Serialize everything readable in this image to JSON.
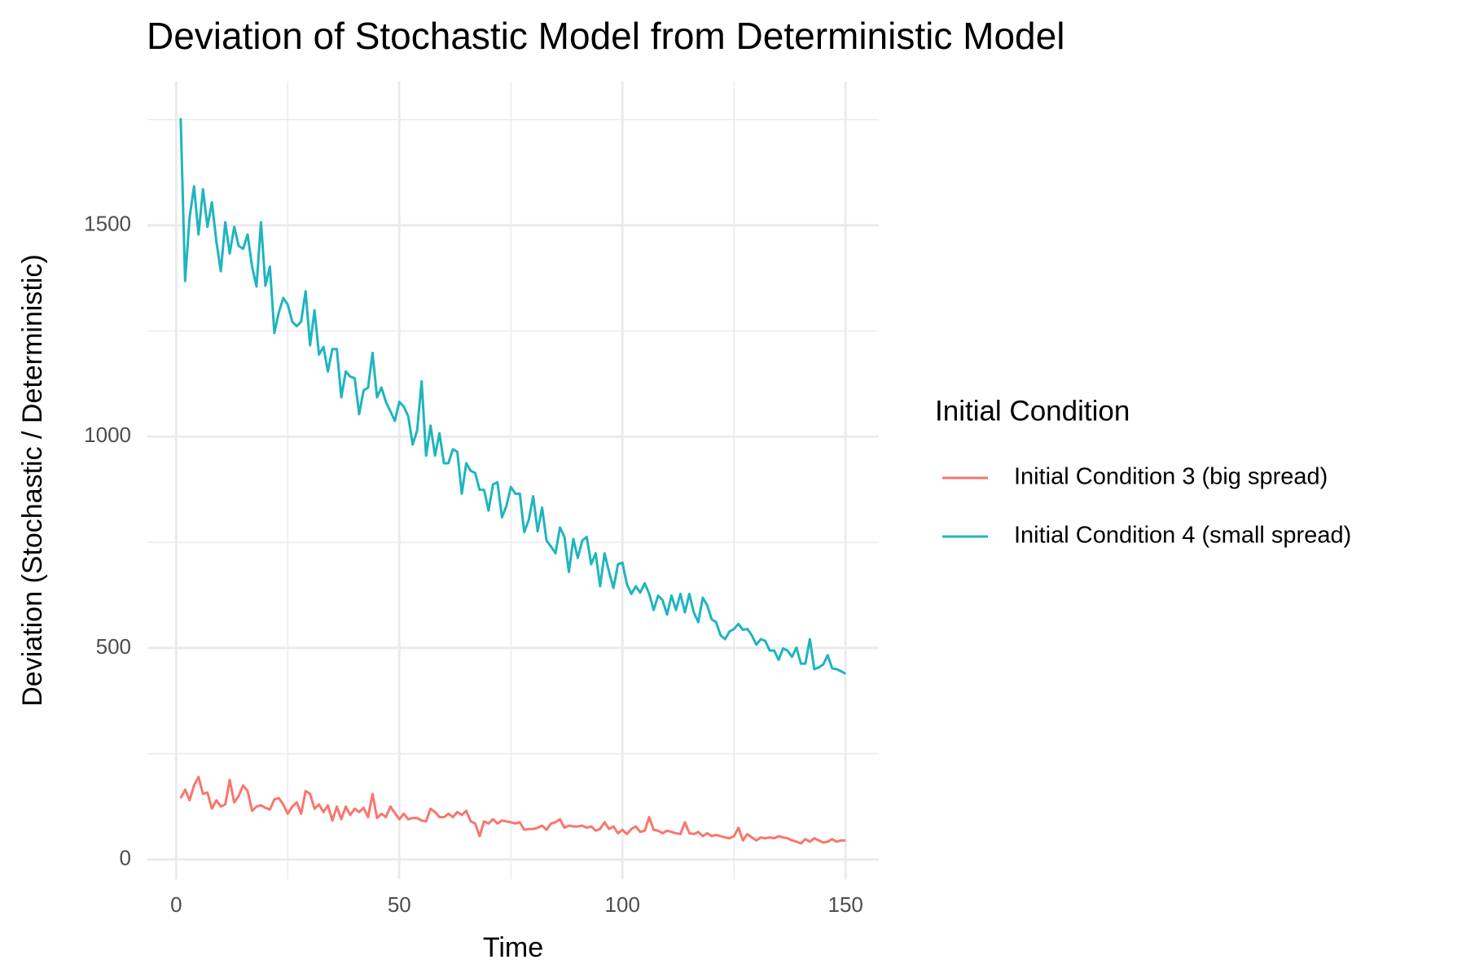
{
  "chart_data": {
    "type": "line",
    "title": "Deviation of Stochastic Model from Deterministic Model",
    "x_label": "Time",
    "y_label": "Deviation (Stochastic / Deterministic)",
    "legend_title": "Initial Condition",
    "legend_position": "right",
    "grid": true,
    "xlim": [
      -6.45,
      157.45
    ],
    "ylim": [
      -47,
      1840
    ],
    "xticks": [
      0,
      50,
      100,
      150
    ],
    "yticks": [
      0,
      500,
      1000,
      1500
    ],
    "x_minor_grid": [
      25,
      75,
      125
    ],
    "y_minor_grid": [
      250,
      750,
      1250,
      1750
    ],
    "x": [
      1,
      2,
      3,
      4,
      5,
      6,
      7,
      8,
      9,
      10,
      11,
      12,
      13,
      14,
      15,
      16,
      17,
      18,
      19,
      20,
      21,
      22,
      23,
      24,
      25,
      26,
      27,
      28,
      29,
      30,
      31,
      32,
      33,
      34,
      35,
      36,
      37,
      38,
      39,
      40,
      41,
      42,
      43,
      44,
      45,
      46,
      47,
      48,
      49,
      50,
      51,
      52,
      53,
      54,
      55,
      56,
      57,
      58,
      59,
      60,
      61,
      62,
      63,
      64,
      65,
      66,
      67,
      68,
      69,
      70,
      71,
      72,
      73,
      74,
      75,
      76,
      77,
      78,
      79,
      80,
      81,
      82,
      83,
      84,
      85,
      86,
      87,
      88,
      89,
      90,
      91,
      92,
      93,
      94,
      95,
      96,
      97,
      98,
      99,
      100,
      101,
      102,
      103,
      104,
      105,
      106,
      107,
      108,
      109,
      110,
      111,
      112,
      113,
      114,
      115,
      116,
      117,
      118,
      119,
      120,
      121,
      122,
      123,
      124,
      125,
      126,
      127,
      128,
      129,
      130,
      131,
      132,
      133,
      134,
      135,
      136,
      137,
      138,
      139,
      140,
      141,
      142,
      143,
      144,
      145,
      146,
      147,
      148,
      149,
      150
    ],
    "series": [
      {
        "name": "Initial Condition 3 (big spread)",
        "color": "#F8766D",
        "values": [
          145,
          165,
          140,
          175,
          195,
          155,
          158,
          120,
          140,
          125,
          130,
          188,
          135,
          150,
          175,
          162,
          115,
          125,
          128,
          122,
          118,
          142,
          145,
          130,
          108,
          125,
          135,
          108,
          162,
          155,
          120,
          130,
          112,
          128,
          92,
          125,
          95,
          125,
          105,
          120,
          112,
          122,
          100,
          155,
          98,
          108,
          100,
          125,
          110,
          95,
          108,
          95,
          98,
          98,
          92,
          90,
          120,
          112,
          100,
          100,
          108,
          100,
          112,
          105,
          115,
          90,
          85,
          55,
          90,
          85,
          95,
          85,
          92,
          90,
          88,
          85,
          88,
          70,
          72,
          72,
          75,
          80,
          70,
          85,
          88,
          95,
          75,
          80,
          78,
          78,
          80,
          75,
          78,
          68,
          72,
          88,
          72,
          78,
          62,
          70,
          60,
          72,
          78,
          65,
          68,
          100,
          70,
          68,
          62,
          68,
          65,
          62,
          60,
          88,
          62,
          60,
          65,
          55,
          62,
          55,
          58,
          55,
          52,
          50,
          55,
          75,
          45,
          60,
          52,
          45,
          52,
          50,
          52,
          50,
          55,
          52,
          50,
          45,
          42,
          38,
          48,
          42,
          50,
          45,
          40,
          42,
          48,
          42,
          45,
          45
        ]
      },
      {
        "name": "Initial Condition 4 (small spread)",
        "color": "#1FB5BE",
        "values": [
          1753,
          1368,
          1518,
          1592,
          1478,
          1585,
          1496,
          1554,
          1462,
          1391,
          1507,
          1433,
          1496,
          1451,
          1444,
          1478,
          1402,
          1355,
          1507,
          1357,
          1402,
          1245,
          1294,
          1328,
          1312,
          1272,
          1261,
          1272,
          1344,
          1216,
          1299,
          1194,
          1212,
          1154,
          1207,
          1207,
          1093,
          1154,
          1142,
          1138,
          1053,
          1109,
          1116,
          1198,
          1093,
          1116,
          1082,
          1060,
          1037,
          1082,
          1071,
          1048,
          981,
          1015,
          1131,
          955,
          1026,
          955,
          1008,
          937,
          937,
          970,
          964,
          865,
          937,
          919,
          914,
          874,
          874,
          825,
          887,
          892,
          809,
          836,
          881,
          865,
          865,
          774,
          803,
          859,
          776,
          832,
          754,
          740,
          724,
          785,
          763,
          680,
          758,
          713,
          754,
          763,
          698,
          724,
          646,
          724,
          680,
          642,
          698,
          702,
          651,
          628,
          646,
          631,
          653,
          628,
          590,
          624,
          613,
          579,
          624,
          590,
          628,
          584,
          628,
          584,
          561,
          619,
          601,
          568,
          561,
          530,
          521,
          539,
          545,
          557,
          543,
          545,
          530,
          508,
          521,
          517,
          494,
          494,
          472,
          499,
          494,
          479,
          501,
          463,
          463,
          521,
          450,
          454,
          461,
          483,
          452,
          450,
          445,
          439
        ]
      }
    ]
  }
}
